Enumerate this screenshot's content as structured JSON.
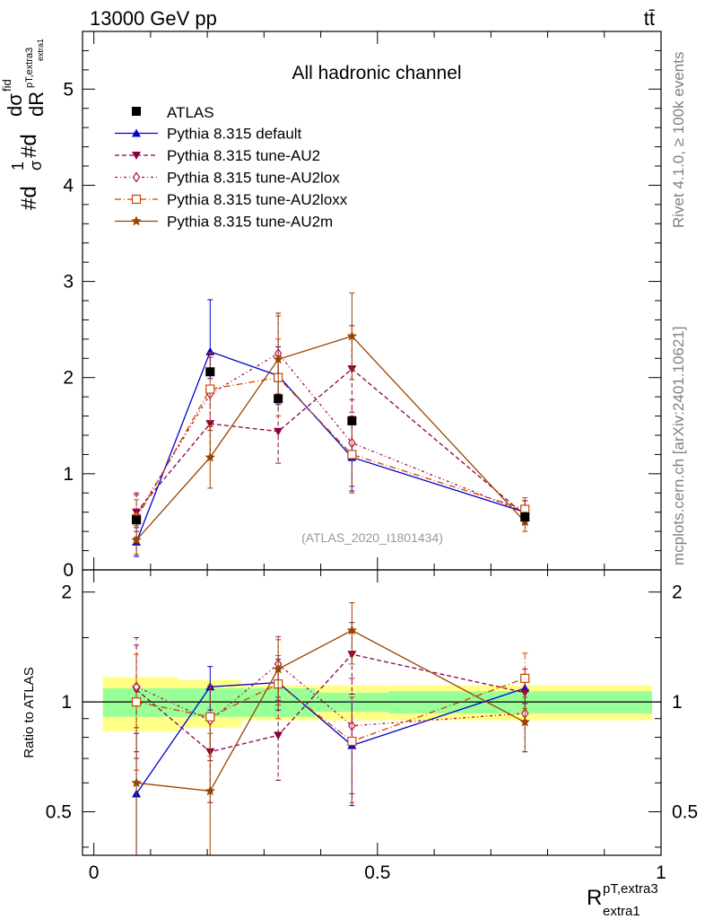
{
  "header": {
    "energy": "13000 GeV pp",
    "process": "tt̄"
  },
  "side_labels": {
    "rivet": "Rivet 4.1.0, ≥ 100k events",
    "mcplots": "mcplots.cern.ch [arXiv:2401.10621]"
  },
  "chart_data": {
    "type": "line",
    "title": "All hadronic channel",
    "analysis_tag": "(ATLAS_2020_I1801434)",
    "xlabel_main": "R",
    "xlabel_sup": "pT,extra3",
    "xlabel_sub": "extra1",
    "ylabel_main": "#d1/σ#d dσ^fid / dR extra1 pT,extra3",
    "ylabel_parts": {
      "prefix1": "#d",
      "frac1_num": "1",
      "frac1_den": "σ",
      "prefix2": "#d",
      "frac2_num": "dσ",
      "frac2_num_sup": "fid",
      "frac2_den": "dR",
      "frac2_den_sup": "pT,extra3",
      "frac2_den_sub": "extra1"
    },
    "ratio_ylabel": "Ratio to ATLAS",
    "xlim": [
      -0.02,
      1.0
    ],
    "ylim_main": [
      0,
      5.6
    ],
    "ylim_ratio": [
      0.38,
      2.3
    ],
    "x_ticks": [
      "0",
      "0.5",
      "1"
    ],
    "main_y_ticks": [
      "0",
      "1",
      "2",
      "3",
      "4",
      "5"
    ],
    "ratio_y_ticks": [
      "0.5",
      "1",
      "2"
    ],
    "x": [
      0.075,
      0.205,
      0.325,
      0.455,
      0.76
    ],
    "bin_edges": [
      0.0,
      0.15,
      0.26,
      0.39,
      0.52,
      1.0
    ],
    "data": {
      "name": "ATLAS",
      "values": [
        0.52,
        2.06,
        1.78,
        1.55,
        0.55
      ],
      "band_stat": [
        0.09,
        0.09,
        0.09,
        0.06,
        0.07
      ],
      "band_total": [
        0.17,
        0.15,
        0.11,
        0.11,
        0.11
      ]
    },
    "series": [
      {
        "name": "Pythia 8.315 default",
        "color": "#0000cc",
        "dash": "",
        "marker": "triangle-up",
        "values": [
          0.29,
          2.27,
          2.02,
          1.17,
          0.6
        ],
        "err_low": [
          0.15,
          0.28,
          0.3,
          0.35,
          0.12
        ],
        "err_high": [
          0.15,
          0.54,
          0.3,
          0.35,
          0.12
        ],
        "ratio": [
          0.56,
          1.1,
          1.13,
          0.76,
          1.09
        ],
        "ratio_err": [
          0.26,
          0.15,
          0.18,
          0.24,
          0.1
        ]
      },
      {
        "name": "Pythia 8.315 tune-AU2",
        "color": "#880044",
        "dash": "5,3",
        "marker": "triangle-down",
        "values": [
          0.6,
          1.52,
          1.44,
          2.09,
          0.57
        ],
        "err_low": [
          0.2,
          0.35,
          0.33,
          0.45,
          0.1
        ],
        "err_high": [
          0.2,
          0.35,
          0.33,
          0.45,
          0.1
        ],
        "ratio": [
          1.08,
          0.73,
          0.81,
          1.35,
          1.06
        ],
        "ratio_err": [
          0.35,
          0.2,
          0.2,
          0.3,
          0.17
        ]
      },
      {
        "name": "Pythia 8.315 tune-AU2lox",
        "color": "#aa1144",
        "dash": "3,3,1,3",
        "marker": "diamond-open",
        "values": [
          0.56,
          1.83,
          2.25,
          1.32,
          0.6
        ],
        "err_low": [
          0.22,
          0.38,
          0.42,
          0.45,
          0.12
        ],
        "err_high": [
          0.22,
          0.38,
          0.42,
          0.45,
          0.12
        ],
        "ratio": [
          1.1,
          0.89,
          1.27,
          0.86,
          0.93
        ],
        "ratio_err": [
          0.4,
          0.2,
          0.24,
          0.3,
          0.2
        ]
      },
      {
        "name": "Pythia 8.315 tune-AU2loxx",
        "color": "#cc4400",
        "dash": "7,3,1,3",
        "marker": "square-open",
        "values": [
          0.53,
          1.88,
          2.0,
          1.2,
          0.63
        ],
        "err_low": [
          0.2,
          0.38,
          0.4,
          0.4,
          0.12
        ],
        "err_high": [
          0.2,
          0.38,
          0.4,
          0.4,
          0.12
        ],
        "ratio": [
          1.0,
          0.91,
          1.12,
          0.78,
          1.16
        ],
        "ratio_err": [
          0.35,
          0.2,
          0.22,
          0.25,
          0.2
        ]
      },
      {
        "name": "Pythia 8.315 tune-AU2m",
        "color": "#994400",
        "dash": "",
        "marker": "star",
        "values": [
          0.31,
          1.17,
          2.19,
          2.43,
          0.5
        ],
        "err_low": [
          0.15,
          0.32,
          0.45,
          0.45,
          0.1
        ],
        "err_high": [
          0.15,
          0.32,
          0.45,
          0.45,
          0.1
        ],
        "ratio": [
          0.6,
          0.57,
          1.23,
          1.57,
          0.88
        ],
        "ratio_err": [
          0.25,
          0.25,
          0.25,
          0.3,
          0.15
        ]
      }
    ]
  }
}
